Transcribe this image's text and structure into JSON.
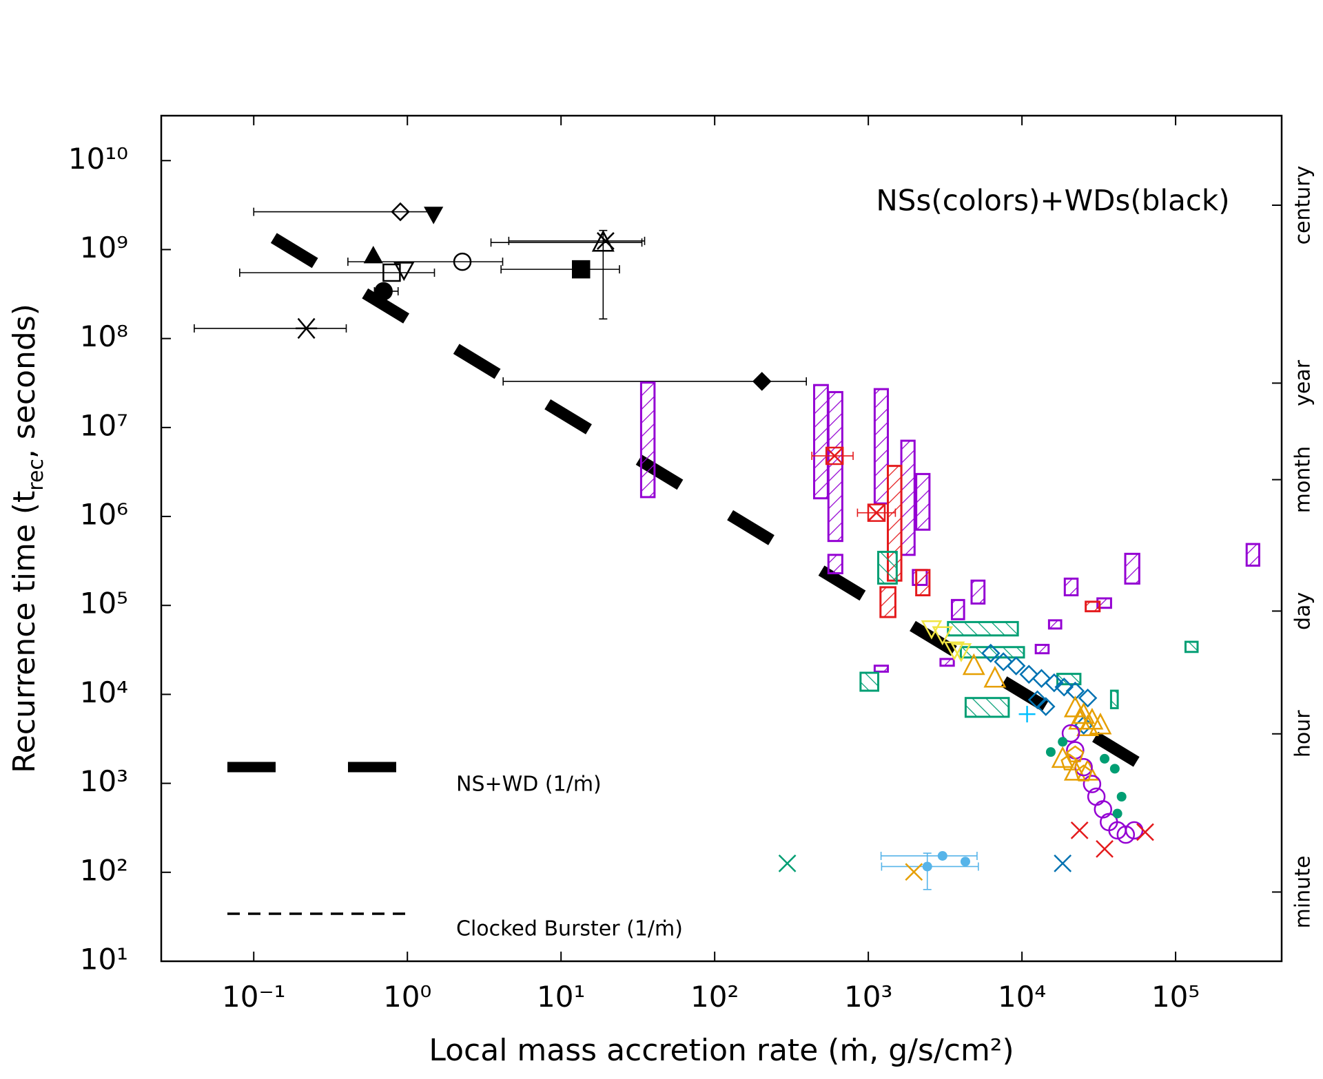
{
  "chart_data": {
    "type": "scatter",
    "xlabel": "Local mass accretion rate (ṁ, g/s/cm²)",
    "ylabel": [
      "Recurrence time (t",
      "rec",
      ", seconds)"
    ],
    "annotation": "NSs(colors)+WDs(black)",
    "xscale": "log",
    "yscale": "log",
    "xlim": [
      0.025,
      490000
    ],
    "ylim": [
      10,
      32000000000
    ],
    "xticks": [
      {
        "value": 0.1,
        "label": "10⁻¹"
      },
      {
        "value": 1,
        "label": "10⁰"
      },
      {
        "value": 10,
        "label": "10¹"
      },
      {
        "value": 100,
        "label": "10²"
      },
      {
        "value": 1000,
        "label": "10³"
      },
      {
        "value": 10000,
        "label": "10⁴"
      },
      {
        "value": 100000,
        "label": "10⁵"
      }
    ],
    "yticks": [
      {
        "value": 10,
        "label": "10¹"
      },
      {
        "value": 100,
        "label": "10²"
      },
      {
        "value": 1000,
        "label": "10³"
      },
      {
        "value": 10000,
        "label": "10⁴"
      },
      {
        "value": 100000,
        "label": "10⁵"
      },
      {
        "value": 1000000,
        "label": "10⁶"
      },
      {
        "value": 10000000,
        "label": "10⁷"
      },
      {
        "value": 100000000,
        "label": "10⁸"
      },
      {
        "value": 1000000000,
        "label": "10⁹"
      },
      {
        "value": 10000000000,
        "label": "10¹⁰"
      }
    ],
    "y2lim": [
      10,
      32000000000
    ],
    "y2ticks": [
      {
        "value": 3153600000,
        "label": "century"
      },
      {
        "value": 31536000,
        "label": "year"
      },
      {
        "value": 2592000,
        "label": "month"
      },
      {
        "value": 86400,
        "label": "day"
      },
      {
        "value": 3600,
        "label": "hour"
      },
      {
        "value": 60,
        "label": "minute"
      }
    ],
    "series": [
      {
        "name": "NS+WD (1/ṁ)",
        "kind": "line",
        "style": "thick-dash",
        "color": "#000000",
        "x": [
          0.135,
          72000
        ],
        "values": [
          1350000000,
          1330
        ]
      },
      {
        "name": "Clocked Burster (1/ṁ)",
        "kind": "line",
        "style": "thin-dash",
        "color": "#000000",
        "x": [],
        "values": []
      },
      {
        "kind": "points",
        "marker": "diamond-open",
        "color": "#000000",
        "x": [
          0.9
        ],
        "values": [
          2660000000
        ],
        "xmin": [
          0.1
        ],
        "xmax": [
          1.54
        ]
      },
      {
        "kind": "points",
        "marker": "tri-down-filled",
        "color": "#000000",
        "x": [
          1.48
        ],
        "values": [
          2500000000
        ]
      },
      {
        "kind": "points",
        "marker": "tri-filled",
        "color": "#000000",
        "x": [
          0.6
        ],
        "values": [
          850000000
        ]
      },
      {
        "kind": "points",
        "marker": "tri-down-open",
        "color": "#000000",
        "x": [
          0.95
        ],
        "values": [
          600000000
        ]
      },
      {
        "kind": "points",
        "marker": "square-open",
        "color": "#000000",
        "x": [
          0.79
        ],
        "values": [
          550000000
        ],
        "xmin": [
          0.081
        ],
        "xmax": [
          1.5
        ]
      },
      {
        "kind": "points",
        "marker": "circle-open",
        "color": "#000000",
        "x": [
          2.28
        ],
        "values": [
          730000000
        ],
        "xmin": [
          0.41
        ],
        "xmax": [
          4.17
        ]
      },
      {
        "kind": "points",
        "marker": "circle-filled",
        "color": "#000000",
        "x": [
          0.7
        ],
        "values": [
          340000000
        ],
        "xmin": [
          0.61
        ],
        "xmax": [
          0.87
        ]
      },
      {
        "kind": "points",
        "marker": "square-filled",
        "color": "#000000",
        "x": [
          13.5
        ],
        "values": [
          600000000
        ],
        "xmin": [
          4.07
        ],
        "xmax": [
          24
        ]
      },
      {
        "kind": "points",
        "marker": "tri-open",
        "color": "#000000",
        "x": [
          18.8
        ],
        "values": [
          1200000000
        ],
        "xmin": [
          3.5
        ],
        "xmax": [
          33.6
        ],
        "ymin": [
          166000000
        ],
        "ymax": [
          1640000000
        ]
      },
      {
        "kind": "points",
        "marker": "x",
        "color": "#000000",
        "x": [
          19.5
        ],
        "values": [
          1250000000
        ],
        "xmin": [
          4.57
        ],
        "xmax": [
          35
        ]
      },
      {
        "kind": "points",
        "marker": "asterisk",
        "color": "#000000",
        "x": [
          0.22
        ],
        "values": [
          130000000
        ],
        "xmin": [
          0.041
        ],
        "xmax": [
          0.4
        ]
      },
      {
        "kind": "points",
        "marker": "diamond-filled",
        "color": "#000000",
        "x": [
          203
        ],
        "values": [
          33000000
        ],
        "xmin": [
          4.2
        ],
        "xmax": [
          395
        ]
      },
      {
        "kind": "boxes",
        "hatch": "fwd",
        "color": "#9400d3",
        "xlow": [
          33.2,
          444,
          550,
          550,
          1100,
          1640,
          2050,
          1950,
          3500,
          4700,
          19000,
          47000,
          290000,
          31000,
          15000,
          12300,
          1100,
          2950
        ],
        "xhigh": [
          40.6,
          545,
          677,
          677,
          1340,
          2000,
          2500,
          2400,
          4200,
          5700,
          23000,
          58000,
          350000,
          38000,
          18000,
          14900,
          1340,
          3600
        ],
        "ylow": [
          1650000,
          1600000,
          530000,
          230000,
          1400000,
          370000,
          710000,
          170000,
          70000,
          105000,
          130000,
          176000,
          280000,
          94000,
          55000,
          29000,
          18000,
          21000
        ],
        "yhigh": [
          32000000,
          30000000,
          25000000,
          370000,
          27000000,
          7100000,
          3000000,
          250000,
          115000,
          190000,
          200000,
          380000,
          490000,
          120000,
          68000,
          36000,
          21000,
          25000
        ]
      },
      {
        "kind": "boxes",
        "hatch": "fwd",
        "color": "#e41a1c",
        "xlow": [
          1340,
          1200,
          2050,
          26000
        ],
        "xhigh": [
          1640,
          1500,
          2500,
          32000
        ],
        "ylow": [
          190000,
          74000,
          130000,
          86000
        ],
        "yhigh": [
          3700000,
          160000,
          250000,
          110000
        ]
      },
      {
        "kind": "boxes",
        "hatch": "back",
        "color": "#009e73",
        "xlow": [
          1160,
          3300,
          890,
          4300,
          4000,
          116000,
          17000,
          38000
        ],
        "xhigh": [
          1530,
          9400,
          1160,
          8200,
          10300,
          139000,
          24000,
          42000
        ],
        "ylow": [
          176000,
          46000,
          11000,
          5600,
          26000,
          30000,
          13000,
          7000
        ],
        "yhigh": [
          400000,
          65000,
          17500,
          9100,
          34000,
          39000,
          17000,
          11000
        ]
      },
      {
        "kind": "points",
        "marker": "diamond-open",
        "color": "#0072b2",
        "x": [
          6260,
          7570,
          9160,
          11100,
          13400,
          16200,
          18800,
          22200,
          26800,
          14300,
          12600,
          25200
        ],
        "values": [
          29000,
          23300,
          20900,
          16800,
          15100,
          13500,
          12100,
          10900,
          9100,
          7300,
          8700,
          4500
        ]
      },
      {
        "kind": "points",
        "marker": "tri-open",
        "color": "#e69f00",
        "x": [
          22200,
          25200,
          28600,
          32400,
          23700,
          26800,
          6670,
          4860,
          18400,
          22200,
          26800
        ],
        "values": [
          7000,
          5900,
          5100,
          4500,
          5100,
          4300,
          15100,
          20900,
          1890,
          1360,
          1360
        ]
      },
      {
        "kind": "points",
        "marker": "circle-open",
        "color": "#9400d3",
        "x": [
          20800,
          22200,
          25200,
          28600,
          30500,
          33700,
          36800,
          41800,
          47400,
          53800
        ],
        "values": [
          3650,
          2350,
          1520,
          982,
          708,
          510,
          367,
          296,
          265,
          296
        ]
      },
      {
        "kind": "points",
        "marker": "dot",
        "color": "#009e73",
        "x": [
          15400,
          18400,
          40200,
          44500,
          41800,
          34500
        ],
        "values": [
          2250,
          2930,
          1460,
          708,
          457,
          1890
        ]
      },
      {
        "kind": "points",
        "marker": "tri-down-open",
        "color": "#f0e442",
        "x": [
          2580,
          3040,
          3630,
          4020
        ],
        "values": [
          56000,
          48000,
          32400,
          31000
        ]
      },
      {
        "kind": "points",
        "marker": "pentagon-open",
        "color": "#e69f00",
        "x": [
          20400,
          25200,
          22200
        ],
        "values": [
          1700,
          1280,
          2100
        ]
      },
      {
        "kind": "points",
        "marker": "crossbox",
        "color": "#e41a1c",
        "x": [
          603,
          1130
        ],
        "values": [
          4800000,
          1100000
        ],
        "xmin": [
          429,
          850
        ],
        "xmax": [
          796,
          1500
        ]
      },
      {
        "kind": "points",
        "marker": "plus",
        "color": "#00bfff",
        "x": [
          10800
        ],
        "values": [
          6000
        ]
      },
      {
        "kind": "points",
        "marker": "dot",
        "color": "#56b4e9",
        "x": [
          2420,
          3040,
          4280
        ],
        "values": [
          116,
          153,
          132
        ],
        "xmin": [
          1220,
          1210,
          null
        ],
        "xmax": [
          5200,
          5100,
          null
        ],
        "ymin": [
          64,
          null,
          null
        ],
        "ymax": [
          164,
          null,
          null
        ]
      },
      {
        "kind": "points",
        "marker": "x",
        "color": "#009e73",
        "x": [
          297
        ],
        "values": [
          126
        ]
      },
      {
        "kind": "points",
        "marker": "x",
        "color": "#0072b2",
        "x": [
          18400
        ],
        "values": [
          126
        ]
      },
      {
        "kind": "points",
        "marker": "x",
        "color": "#e69f00",
        "x": [
          1980
        ],
        "values": [
          101
        ]
      },
      {
        "kind": "points",
        "marker": "x",
        "color": "#e41a1c",
        "x": [
          23700,
          34500,
          63400
        ],
        "values": [
          296,
          183,
          283
        ]
      }
    ]
  }
}
